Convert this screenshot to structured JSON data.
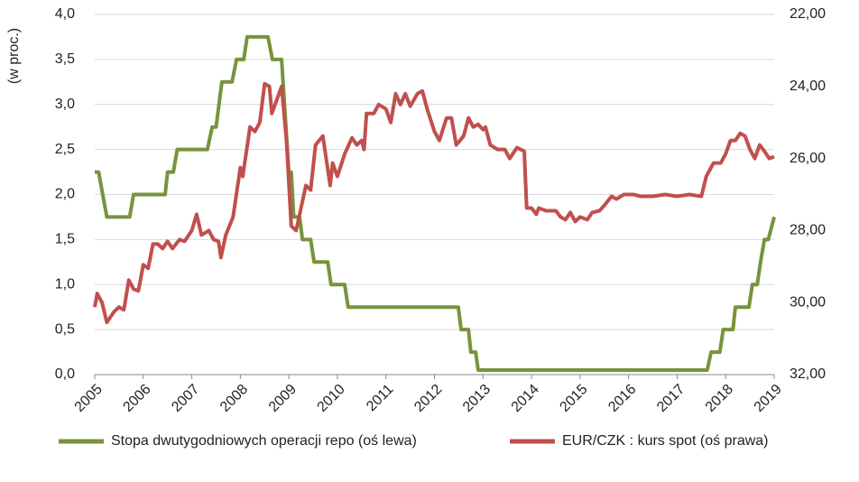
{
  "chart_data": {
    "type": "line",
    "y_axis_label": "(w proc.)",
    "xlim": [
      2005,
      2019
    ],
    "xticks": [
      2005,
      2006,
      2007,
      2008,
      2009,
      2010,
      2011,
      2012,
      2013,
      2014,
      2015,
      2016,
      2017,
      2018,
      2019
    ],
    "ylim": [
      0,
      4
    ],
    "yticks": [
      {
        "value": 0,
        "label": "0,0"
      },
      {
        "value": 0.5,
        "label": "0,5"
      },
      {
        "value": 1,
        "label": "1,0"
      },
      {
        "value": 1.5,
        "label": "1,5"
      },
      {
        "value": 2,
        "label": "2,0"
      },
      {
        "value": 2.5,
        "label": "2,5"
      },
      {
        "value": 3,
        "label": "3,0"
      },
      {
        "value": 3.5,
        "label": "3,5"
      },
      {
        "value": 4,
        "label": "4,0"
      }
    ],
    "y2lim": [
      32,
      22
    ],
    "y2ticks": [
      {
        "value": 22,
        "label": "22,00"
      },
      {
        "value": 24,
        "label": "24,00"
      },
      {
        "value": 26,
        "label": "26,00"
      },
      {
        "value": 28,
        "label": "28,00"
      },
      {
        "value": 30,
        "label": "30,00"
      },
      {
        "value": 32,
        "label": "32,00"
      }
    ],
    "grid": true,
    "legend": "bottom",
    "series": [
      {
        "name": "Stopa dwutygodniowych operacji repo (oś lewa)",
        "color": "#77933c",
        "axis": "y",
        "x": [
          2005.0,
          2005.08,
          2005.25,
          2005.72,
          2005.8,
          2006.45,
          2006.5,
          2006.62,
          2006.7,
          2007.32,
          2007.42,
          2007.5,
          2007.62,
          2007.83,
          2007.92,
          2008.07,
          2008.14,
          2008.57,
          2008.66,
          2008.85,
          2009.0,
          2009.05,
          2009.1,
          2009.22,
          2009.28,
          2009.45,
          2009.52,
          2009.8,
          2009.87,
          2010.15,
          2010.22,
          2012.49,
          2012.55,
          2012.7,
          2012.75,
          2012.85,
          2012.9,
          2017.62,
          2017.7,
          2017.88,
          2017.95,
          2018.15,
          2018.2,
          2018.48,
          2018.55,
          2018.65,
          2018.72,
          2018.8,
          2018.88,
          2019.0
        ],
        "values": [
          2.25,
          2.25,
          1.75,
          1.75,
          2.0,
          2.0,
          2.25,
          2.25,
          2.5,
          2.5,
          2.75,
          2.75,
          3.25,
          3.25,
          3.5,
          3.5,
          3.75,
          3.75,
          3.5,
          3.5,
          2.25,
          2.25,
          1.75,
          1.75,
          1.5,
          1.5,
          1.25,
          1.25,
          1.0,
          1.0,
          0.75,
          0.75,
          0.5,
          0.5,
          0.25,
          0.25,
          0.05,
          0.05,
          0.25,
          0.25,
          0.5,
          0.5,
          0.75,
          0.75,
          1.0,
          1.0,
          1.25,
          1.5,
          1.5,
          1.75
        ]
      },
      {
        "name": "EUR/CZK : kurs spot (oś prawa)",
        "color": "#c0504d",
        "axis": "y2",
        "x": [
          2005.0,
          2005.05,
          2005.15,
          2005.25,
          2005.4,
          2005.5,
          2005.6,
          2005.7,
          2005.8,
          2005.9,
          2006.0,
          2006.1,
          2006.2,
          2006.3,
          2006.4,
          2006.5,
          2006.6,
          2006.75,
          2006.85,
          2007.0,
          2007.1,
          2007.2,
          2007.35,
          2007.45,
          2007.55,
          2007.6,
          2007.7,
          2007.85,
          2008.0,
          2008.05,
          2008.2,
          2008.3,
          2008.4,
          2008.5,
          2008.6,
          2008.65,
          2008.85,
          2008.95,
          2009.05,
          2009.15,
          2009.35,
          2009.45,
          2009.55,
          2009.7,
          2009.85,
          2009.9,
          2010.0,
          2010.15,
          2010.3,
          2010.4,
          2010.5,
          2010.55,
          2010.6,
          2010.75,
          2010.85,
          2011.0,
          2011.1,
          2011.2,
          2011.3,
          2011.4,
          2011.5,
          2011.65,
          2011.75,
          2011.85,
          2012.0,
          2012.1,
          2012.25,
          2012.35,
          2012.45,
          2012.6,
          2012.7,
          2012.8,
          2012.9,
          2013.0,
          2013.05,
          2013.15,
          2013.3,
          2013.45,
          2013.55,
          2013.7,
          2013.85,
          2013.9,
          2014.0,
          2014.1,
          2014.15,
          2014.3,
          2014.5,
          2014.6,
          2014.7,
          2014.8,
          2014.9,
          2015.0,
          2015.15,
          2015.25,
          2015.4,
          2015.5,
          2015.65,
          2015.75,
          2015.9,
          2016.1,
          2016.25,
          2016.5,
          2016.75,
          2017.0,
          2017.25,
          2017.5,
          2017.6,
          2017.75,
          2017.9,
          2018.0,
          2018.1,
          2018.2,
          2018.3,
          2018.4,
          2018.5,
          2018.6,
          2018.7,
          2018.8,
          2018.9,
          2019.0
        ],
        "values": [
          30.125,
          29.75,
          30.0,
          30.55,
          30.25,
          30.125,
          30.2,
          29.375,
          29.625,
          29.675,
          28.95,
          29.05,
          28.375,
          28.375,
          28.5,
          28.3,
          28.5,
          28.25,
          28.3,
          28.0,
          27.55,
          28.125,
          28.0,
          28.25,
          28.3,
          28.75,
          28.125,
          27.625,
          26.25,
          26.5,
          25.125,
          25.25,
          25.0,
          23.925,
          24.0,
          24.75,
          24.0,
          25.5,
          27.875,
          28.0,
          26.75,
          26.875,
          25.625,
          25.375,
          26.75,
          26.125,
          26.5,
          25.875,
          25.425,
          25.625,
          25.5,
          25.75,
          24.75,
          24.75,
          24.5,
          24.625,
          25.0,
          24.2,
          24.5,
          24.2,
          24.55,
          24.2,
          24.125,
          24.625,
          25.25,
          25.5,
          24.875,
          24.875,
          25.625,
          25.375,
          24.875,
          25.125,
          25.05,
          25.2,
          25.125,
          25.625,
          25.75,
          25.75,
          26.0,
          25.7,
          25.8,
          27.375,
          27.375,
          27.55,
          27.375,
          27.45,
          27.45,
          27.625,
          27.7,
          27.5,
          27.75,
          27.625,
          27.7,
          27.5,
          27.45,
          27.3,
          27.05,
          27.125,
          27.0,
          27.0,
          27.05,
          27.05,
          27.0,
          27.05,
          27.0,
          27.05,
          26.5,
          26.125,
          26.125,
          25.875,
          25.5,
          25.5,
          25.3,
          25.375,
          25.75,
          26.0,
          25.625,
          25.8,
          26.0,
          25.95
        ]
      }
    ]
  }
}
